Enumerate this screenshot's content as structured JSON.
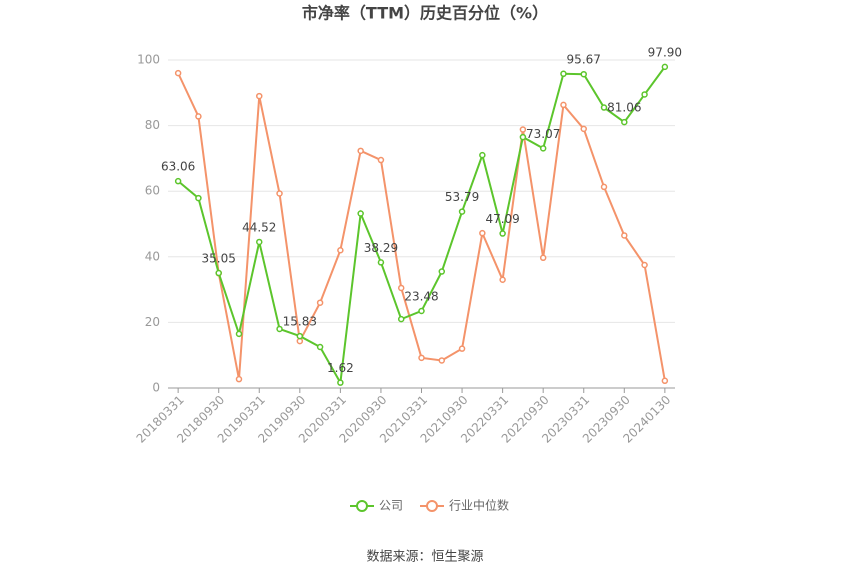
{
  "chart_data": {
    "type": "line",
    "title": "市净率（TTM）历史百分位（%）",
    "source": "数据来源：恒生聚源",
    "categories": [
      "20180331",
      null,
      "20180930",
      null,
      "20190331",
      null,
      "20190930",
      null,
      "20200331",
      null,
      "20200930",
      null,
      "20210331",
      null,
      "20210930",
      null,
      "20220331",
      null,
      "20220930",
      null,
      "20230331",
      null,
      "20230930",
      null,
      "20240130"
    ],
    "series": [
      {
        "name": "公司",
        "color": "#5cc52c",
        "values": [
          63.06,
          57.9,
          35.05,
          16.5,
          44.52,
          18,
          15.83,
          12.5,
          1.62,
          53.2,
          38.29,
          21,
          23.48,
          35.5,
          53.79,
          71,
          47.09,
          76.5,
          73.07,
          95.8,
          95.67,
          85.5,
          81.06,
          89.5,
          97.9
        ],
        "value_labels": [
          "63.06",
          null,
          "35.05",
          null,
          "44.52",
          null,
          "15.83",
          null,
          "1.62",
          null,
          "38.29",
          null,
          "23.48",
          null,
          "53.79",
          null,
          "47.09",
          null,
          "73.07",
          null,
          "95.67",
          null,
          "81.06",
          null,
          "97.90"
        ]
      },
      {
        "name": "行业中位数",
        "color": "#f4936a",
        "values": [
          96,
          82.8,
          35,
          2.7,
          89,
          59.3,
          14.3,
          26,
          42,
          72.3,
          69.5,
          30.5,
          9.2,
          8.4,
          12,
          47.2,
          33,
          78.8,
          39.7,
          86.3,
          79,
          61.3,
          46.5,
          37.5,
          2.2
        ]
      }
    ],
    "ylim": [
      0,
      100
    ],
    "yticks": [
      0,
      20,
      40,
      60,
      80,
      100
    ],
    "grid": true,
    "legend": "bottom"
  }
}
